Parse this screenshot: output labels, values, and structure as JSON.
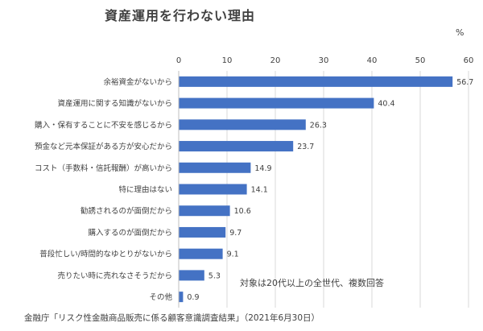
{
  "chart_data": {
    "type": "bar",
    "orientation": "horizontal",
    "title": "資産運用を行わない理由",
    "unit": "%",
    "xlim": [
      0,
      60
    ],
    "x_ticks": [
      0,
      10,
      20,
      30,
      40,
      50,
      60
    ],
    "grid": true,
    "bar_color": "#4472C4",
    "categories": [
      "余裕資金がないから",
      "資産運用に関する知識がないから",
      "購入・保有することに不安を感じるから",
      "預金など元本保証がある方が安心だから",
      "コスト（手数料・信託報酬）が高いから",
      "特に理由はない",
      "勧誘されるのが面倒だから",
      "購入するのが面倒だから",
      "普段忙しい/時間的なゆとりがないから",
      "売りたい時に売れなさそうだから",
      "その他"
    ],
    "values": [
      56.7,
      40.4,
      26.3,
      23.7,
      14.9,
      14.1,
      10.6,
      9.7,
      9.1,
      5.3,
      0.9
    ],
    "value_labels": [
      "56.7",
      "40.4",
      "26.3",
      "23.7",
      "14.9",
      "14.1",
      "10.6",
      "9.7",
      "9.1",
      "5.3",
      "0.9"
    ],
    "annotation": "対象は20代以上の全世代、複数回答",
    "source": "金融庁「リスク性金融商品販売に係る顧客意識調査結果」（2021年6月30日）"
  }
}
